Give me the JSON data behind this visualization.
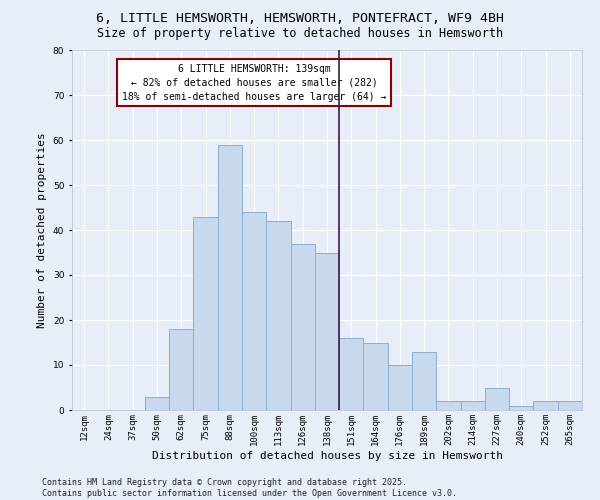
{
  "title1": "6, LITTLE HEMSWORTH, HEMSWORTH, PONTEFRACT, WF9 4BH",
  "title2": "Size of property relative to detached houses in Hemsworth",
  "xlabel": "Distribution of detached houses by size in Hemsworth",
  "ylabel": "Number of detached properties",
  "categories": [
    "12sqm",
    "24sqm",
    "37sqm",
    "50sqm",
    "62sqm",
    "75sqm",
    "88sqm",
    "100sqm",
    "113sqm",
    "126sqm",
    "138sqm",
    "151sqm",
    "164sqm",
    "176sqm",
    "189sqm",
    "202sqm",
    "214sqm",
    "227sqm",
    "240sqm",
    "252sqm",
    "265sqm"
  ],
  "values": [
    0,
    0,
    0,
    3,
    18,
    43,
    59,
    44,
    42,
    37,
    35,
    16,
    15,
    10,
    13,
    2,
    2,
    5,
    1,
    2,
    2
  ],
  "bar_color": "#c8d9ee",
  "bar_edge_color": "#8aafd4",
  "vline_x_index": 10.5,
  "vline_color": "#3d1a4a",
  "annotation_box_text": "6 LITTLE HEMSWORTH: 139sqm\n← 82% of detached houses are smaller (282)\n18% of semi-detached houses are larger (64) →",
  "annotation_box_color": "#8b0000",
  "annotation_box_fill": "white",
  "bg_color": "#e8eef8",
  "grid_color": "white",
  "ylim": [
    0,
    80
  ],
  "yticks": [
    0,
    10,
    20,
    30,
    40,
    50,
    60,
    70,
    80
  ],
  "footer_line1": "Contains HM Land Registry data © Crown copyright and database right 2025.",
  "footer_line2": "Contains public sector information licensed under the Open Government Licence v3.0.",
  "title_fontsize": 9.5,
  "subtitle_fontsize": 8.5,
  "axis_label_fontsize": 8,
  "tick_fontsize": 6.5,
  "footer_fontsize": 6,
  "annotation_fontsize": 7
}
